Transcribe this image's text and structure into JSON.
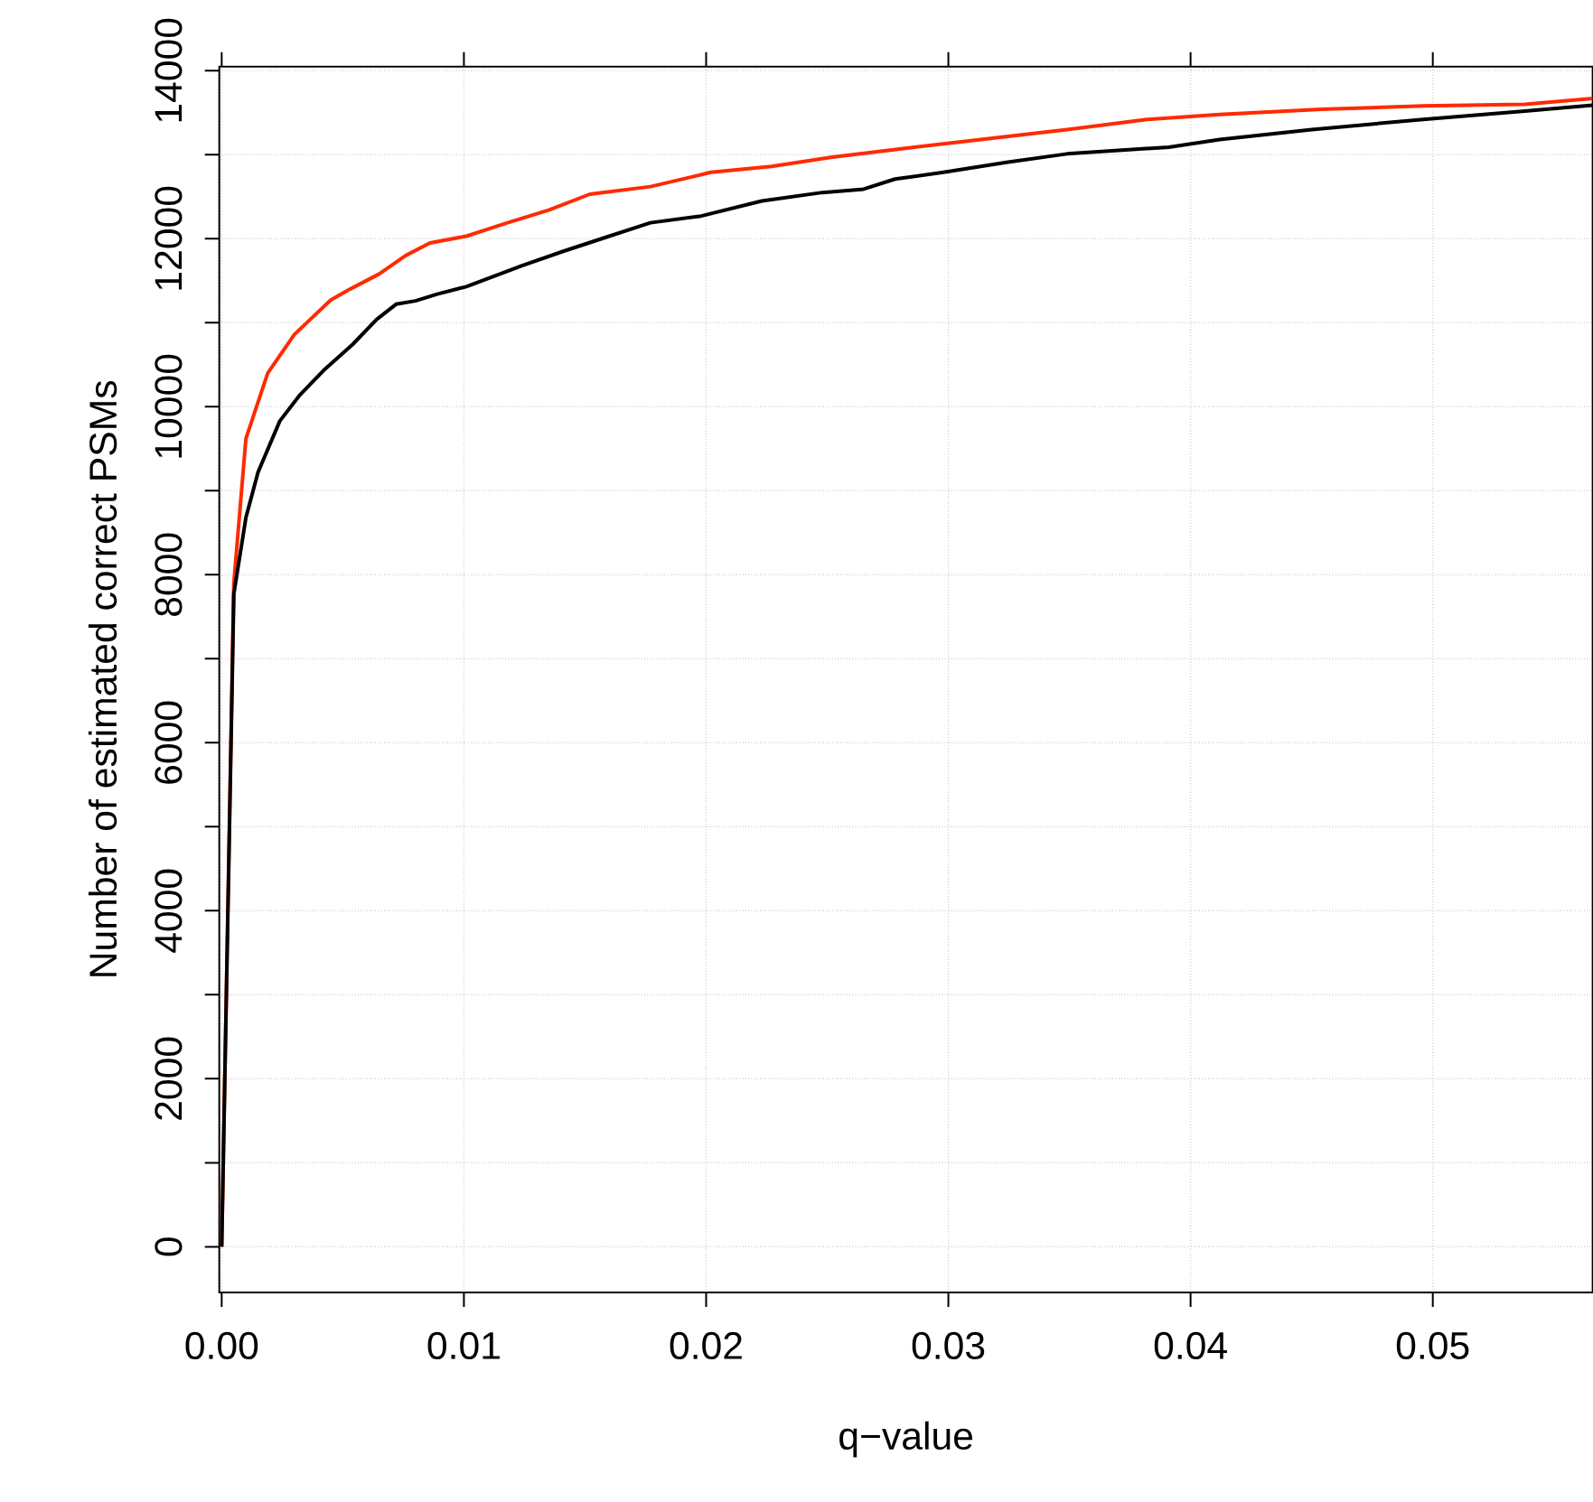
{
  "chart_data": {
    "type": "line",
    "xlabel": "q−value",
    "ylabel": "Number of estimated correct PSMs",
    "xlim": [
      -0.0001,
      0.0566
    ],
    "ylim": [
      -544,
      14050
    ],
    "xticks": [
      {
        "value": 0,
        "label": "0.00"
      },
      {
        "value": 0.01,
        "label": "0.01"
      },
      {
        "value": 0.02,
        "label": "0.02"
      },
      {
        "value": 0.03,
        "label": "0.03"
      },
      {
        "value": 0.04,
        "label": "0.04"
      },
      {
        "value": 0.05,
        "label": "0.05"
      }
    ],
    "yticks": [
      0,
      {
        "value": 1000,
        "label": null
      },
      2000,
      {
        "value": 3000,
        "label": null
      },
      4000,
      {
        "value": 5000,
        "label": null
      },
      6000,
      {
        "value": 7000,
        "label": null
      },
      8000,
      {
        "value": 9000,
        "label": null
      },
      10000,
      {
        "value": 11000,
        "label": null
      },
      12000,
      {
        "value": 13000,
        "label": null
      },
      14000
    ],
    "grid": true,
    "line_style": "solid",
    "series": [
      {
        "color": "#ff2a00",
        "x": [
          0,
          0.0005,
          0.001,
          0.0019,
          0.003,
          0.0045,
          0.0053,
          0.0065,
          0.0076,
          0.0086,
          0.0101,
          0.0118,
          0.0135,
          0.0152,
          0.0177,
          0.0202,
          0.0227,
          0.0252,
          0.0286,
          0.0319,
          0.0349,
          0.0382,
          0.0412,
          0.0454,
          0.0496,
          0.0538,
          0.0566
        ],
        "values": [
          0,
          7900,
          9620,
          10400,
          10860,
          11270,
          11400,
          11580,
          11800,
          11950,
          12030,
          12190,
          12340,
          12530,
          12620,
          12790,
          12860,
          12970,
          13090,
          13200,
          13300,
          13420,
          13480,
          13540,
          13580,
          13600,
          13670
        ]
      },
      {
        "color": "#000000",
        "x": [
          0,
          0.0005,
          0.001,
          0.0015,
          0.0024,
          0.0032,
          0.0042,
          0.0054,
          0.0064,
          0.0072,
          0.008,
          0.0089,
          0.0101,
          0.0124,
          0.0141,
          0.016,
          0.0177,
          0.0198,
          0.0223,
          0.0248,
          0.0265,
          0.0278,
          0.0298,
          0.0324,
          0.0349,
          0.0391,
          0.0412,
          0.045,
          0.0496,
          0.0538,
          0.0566
        ],
        "values": [
          0,
          7770,
          8680,
          9220,
          9830,
          10130,
          10430,
          10740,
          11040,
          11220,
          11260,
          11340,
          11430,
          11680,
          11850,
          12030,
          12190,
          12270,
          12450,
          12550,
          12590,
          12710,
          12790,
          12910,
          13010,
          13090,
          13180,
          13300,
          13420,
          13520,
          13590
        ]
      }
    ]
  }
}
